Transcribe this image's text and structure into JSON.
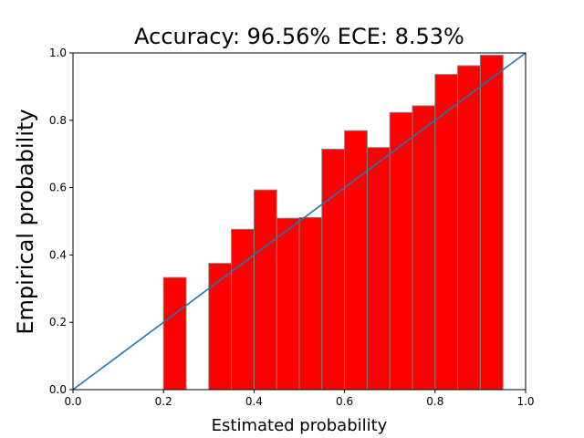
{
  "chart_data": {
    "type": "bar",
    "title": "Accuracy: 96.56% ECE: 8.53%",
    "xlabel": "Estimated probability",
    "ylabel": "Empirical probability",
    "xlim": [
      0,
      1
    ],
    "ylim": [
      0,
      1
    ],
    "bin_width": 0.05,
    "bins": [
      {
        "x": 0.2,
        "value": 0.333
      },
      {
        "x": 0.3,
        "value": 0.375
      },
      {
        "x": 0.35,
        "value": 0.476
      },
      {
        "x": 0.4,
        "value": 0.593
      },
      {
        "x": 0.45,
        "value": 0.509
      },
      {
        "x": 0.5,
        "value": 0.511
      },
      {
        "x": 0.55,
        "value": 0.714
      },
      {
        "x": 0.6,
        "value": 0.769
      },
      {
        "x": 0.65,
        "value": 0.719
      },
      {
        "x": 0.7,
        "value": 0.823
      },
      {
        "x": 0.75,
        "value": 0.843
      },
      {
        "x": 0.8,
        "value": 0.936
      },
      {
        "x": 0.85,
        "value": 0.962
      },
      {
        "x": 0.9,
        "value": 0.993
      }
    ],
    "reference_line": {
      "from": [
        0,
        0
      ],
      "to": [
        1,
        1
      ]
    },
    "xticks": [
      "0.0",
      "0.2",
      "0.4",
      "0.6",
      "0.8",
      "1.0"
    ],
    "yticks": [
      "0.0",
      "0.2",
      "0.4",
      "0.6",
      "0.8",
      "1.0"
    ],
    "bar_color": "#ff0000",
    "bar_edge_color": "#808080",
    "line_color": "#1f77b4",
    "grid": false
  }
}
